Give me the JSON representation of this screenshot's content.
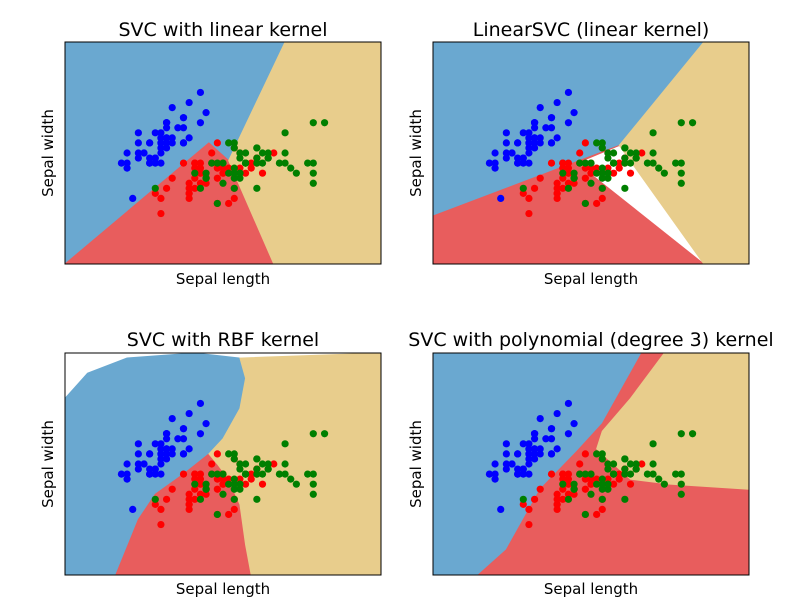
{
  "colors": {
    "blue_region": "#6aa8d0",
    "red_region": "#e85d5d",
    "tan_region": "#e8cd8c",
    "setosa": "#0000ff",
    "versicolor": "#ff0000",
    "virginica": "#007f00"
  },
  "chart_data": [
    {
      "type": "scatter",
      "title": "SVC with linear kernel",
      "xlabel": "Sepal length",
      "ylabel": "Sepal width",
      "ticks": false,
      "xlim": [
        3.3,
        8.9
      ],
      "ylim": [
        1.0,
        5.4
      ],
      "regions": [
        {
          "class": "blue",
          "polygon": [
            [
              3.3,
              1.0
            ],
            [
              3.3,
              5.4
            ],
            [
              7.2,
              5.4
            ],
            [
              6.2,
              3.05
            ],
            [
              5.85,
              3.4
            ],
            [
              3.3,
              1.0
            ]
          ]
        },
        {
          "class": "red",
          "polygon": [
            [
              3.3,
              1.0
            ],
            [
              5.85,
              3.4
            ],
            [
              6.2,
              3.05
            ],
            [
              7.0,
              1.0
            ]
          ]
        },
        {
          "class": "tan",
          "polygon": [
            [
              6.2,
              3.05
            ],
            [
              7.2,
              5.4
            ],
            [
              8.9,
              5.4
            ],
            [
              8.9,
              1.0
            ],
            [
              7.0,
              1.0
            ]
          ]
        }
      ]
    },
    {
      "type": "scatter",
      "title": "LinearSVC (linear kernel)",
      "xlabel": "Sepal length",
      "ylabel": "Sepal width",
      "ticks": false,
      "xlim": [
        3.3,
        8.9
      ],
      "ylim": [
        1.0,
        5.4
      ],
      "regions": [
        {
          "class": "blue",
          "polygon": [
            [
              3.3,
              1.0
            ],
            [
              3.3,
              5.4
            ],
            [
              8.1,
              5.4
            ],
            [
              6.6,
              3.35
            ],
            [
              3.3,
              1.95
            ]
          ]
        },
        {
          "class": "red",
          "polygon": [
            [
              3.3,
              1.0
            ],
            [
              3.3,
              1.95
            ],
            [
              6.6,
              3.35
            ],
            [
              5.85,
              3.0
            ],
            [
              8.1,
              1.0
            ]
          ]
        },
        {
          "class": "tan",
          "polygon": [
            [
              8.1,
              5.4
            ],
            [
              8.9,
              5.4
            ],
            [
              8.9,
              1.0
            ],
            [
              8.1,
              1.0
            ],
            [
              6.6,
              3.35
            ]
          ]
        }
      ]
    },
    {
      "type": "scatter",
      "title": "SVC with RBF kernel",
      "xlabel": "Sepal length",
      "ylabel": "Sepal width",
      "ticks": false,
      "xlim": [
        3.3,
        8.9
      ],
      "ylim": [
        1.0,
        5.4
      ],
      "regions": [
        {
          "class": "blue",
          "polygon": [
            [
              3.3,
              1.0
            ],
            [
              3.3,
              4.5
            ],
            [
              3.7,
              5.0
            ],
            [
              4.4,
              5.3
            ],
            [
              5.6,
              5.4
            ],
            [
              6.4,
              5.3
            ],
            [
              6.5,
              4.9
            ],
            [
              6.4,
              4.3
            ],
            [
              6.1,
              3.7
            ],
            [
              5.85,
              3.4
            ],
            [
              5.4,
              3.0
            ],
            [
              4.9,
              2.6
            ],
            [
              4.6,
              2.1
            ],
            [
              4.2,
              1.0
            ]
          ]
        },
        {
          "class": "red",
          "polygon": [
            [
              4.2,
              1.0
            ],
            [
              4.6,
              2.1
            ],
            [
              4.9,
              2.6
            ],
            [
              5.4,
              3.0
            ],
            [
              5.85,
              3.4
            ],
            [
              6.0,
              3.2
            ],
            [
              6.2,
              2.9
            ],
            [
              6.4,
              2.4
            ],
            [
              6.5,
              1.6
            ],
            [
              6.6,
              1.0
            ]
          ]
        },
        {
          "class": "tan",
          "polygon": [
            [
              6.6,
              1.0
            ],
            [
              6.5,
              1.6
            ],
            [
              6.4,
              2.4
            ],
            [
              6.2,
              2.9
            ],
            [
              6.0,
              3.2
            ],
            [
              5.85,
              3.4
            ],
            [
              6.1,
              3.7
            ],
            [
              6.4,
              4.3
            ],
            [
              6.5,
              4.9
            ],
            [
              6.4,
              5.3
            ],
            [
              8.9,
              5.4
            ],
            [
              8.9,
              1.0
            ]
          ]
        }
      ]
    },
    {
      "type": "scatter",
      "title": "SVC with polynomial (degree 3) kernel",
      "xlabel": "Sepal length",
      "ylabel": "Sepal width",
      "ticks": false,
      "xlim": [
        3.3,
        8.9
      ],
      "ylim": [
        1.0,
        5.4
      ],
      "regions": [
        {
          "class": "blue",
          "polygon": [
            [
              3.3,
              1.0
            ],
            [
              3.3,
              5.4
            ],
            [
              7.0,
              5.4
            ],
            [
              6.3,
              4.0
            ],
            [
              5.85,
              3.45
            ],
            [
              5.2,
              2.7
            ],
            [
              4.6,
              1.5
            ],
            [
              4.1,
              1.0
            ]
          ]
        },
        {
          "class": "red",
          "polygon": [
            [
              4.1,
              1.0
            ],
            [
              4.6,
              1.5
            ],
            [
              5.2,
              2.7
            ],
            [
              5.85,
              3.45
            ],
            [
              6.3,
              4.0
            ],
            [
              7.0,
              5.4
            ],
            [
              7.4,
              5.4
            ],
            [
              6.8,
              4.5
            ],
            [
              6.3,
              3.85
            ],
            [
              6.2,
              3.5
            ],
            [
              6.5,
              3.2
            ],
            [
              6.8,
              2.9
            ],
            [
              7.5,
              2.8
            ],
            [
              8.9,
              2.7
            ],
            [
              8.9,
              1.0
            ]
          ]
        },
        {
          "class": "tan",
          "polygon": [
            [
              7.4,
              5.4
            ],
            [
              8.9,
              5.4
            ],
            [
              8.9,
              2.7
            ],
            [
              7.5,
              2.8
            ],
            [
              6.8,
              2.9
            ],
            [
              6.5,
              3.2
            ],
            [
              6.2,
              3.5
            ],
            [
              6.3,
              3.85
            ],
            [
              6.8,
              4.5
            ]
          ]
        }
      ]
    }
  ],
  "points": {
    "setosa": [
      [
        5.1,
        3.5
      ],
      [
        4.9,
        3.0
      ],
      [
        4.7,
        3.2
      ],
      [
        4.6,
        3.1
      ],
      [
        5.0,
        3.6
      ],
      [
        5.4,
        3.9
      ],
      [
        4.6,
        3.4
      ],
      [
        5.0,
        3.4
      ],
      [
        4.4,
        2.9
      ],
      [
        4.9,
        3.1
      ],
      [
        5.4,
        3.7
      ],
      [
        4.8,
        3.4
      ],
      [
        4.8,
        3.0
      ],
      [
        4.3,
        3.0
      ],
      [
        5.8,
        4.0
      ],
      [
        5.7,
        4.4
      ],
      [
        5.4,
        3.9
      ],
      [
        5.1,
        3.5
      ],
      [
        5.7,
        3.8
      ],
      [
        5.1,
        3.8
      ],
      [
        5.4,
        3.4
      ],
      [
        5.1,
        3.7
      ],
      [
        4.6,
        3.6
      ],
      [
        5.1,
        3.3
      ],
      [
        4.8,
        3.4
      ],
      [
        5.0,
        3.0
      ],
      [
        5.0,
        3.4
      ],
      [
        5.2,
        3.5
      ],
      [
        5.2,
        3.4
      ],
      [
        4.7,
        3.2
      ],
      [
        4.8,
        3.1
      ],
      [
        5.4,
        3.4
      ],
      [
        5.2,
        4.1
      ],
      [
        5.5,
        4.2
      ],
      [
        4.9,
        3.1
      ],
      [
        5.0,
        3.2
      ],
      [
        5.5,
        3.5
      ],
      [
        4.9,
        3.6
      ],
      [
        4.4,
        3.0
      ],
      [
        5.1,
        3.4
      ],
      [
        5.0,
        3.5
      ],
      [
        4.5,
        2.3
      ],
      [
        4.4,
        3.2
      ],
      [
        5.0,
        3.5
      ],
      [
        5.1,
        3.8
      ],
      [
        4.8,
        3.0
      ],
      [
        5.1,
        3.8
      ],
      [
        4.6,
        3.2
      ],
      [
        5.3,
        3.7
      ],
      [
        5.0,
        3.3
      ]
    ],
    "versicolor": [
      [
        7.0,
        3.2
      ],
      [
        6.4,
        3.2
      ],
      [
        6.9,
        3.1
      ],
      [
        5.5,
        2.3
      ],
      [
        6.5,
        2.8
      ],
      [
        5.7,
        2.8
      ],
      [
        6.3,
        3.3
      ],
      [
        4.9,
        2.4
      ],
      [
        6.6,
        2.9
      ],
      [
        5.2,
        2.7
      ],
      [
        5.0,
        2.0
      ],
      [
        5.9,
        3.0
      ],
      [
        6.0,
        2.2
      ],
      [
        6.1,
        2.9
      ],
      [
        5.6,
        2.9
      ],
      [
        6.7,
        3.1
      ],
      [
        5.6,
        3.0
      ],
      [
        5.8,
        2.7
      ],
      [
        6.2,
        2.2
      ],
      [
        5.6,
        2.5
      ],
      [
        5.9,
        3.2
      ],
      [
        6.1,
        2.8
      ],
      [
        6.3,
        2.5
      ],
      [
        6.1,
        2.8
      ],
      [
        6.4,
        2.9
      ],
      [
        6.6,
        3.0
      ],
      [
        6.8,
        2.8
      ],
      [
        6.7,
        3.0
      ],
      [
        6.0,
        2.9
      ],
      [
        5.7,
        2.6
      ],
      [
        5.5,
        2.4
      ],
      [
        5.5,
        2.4
      ],
      [
        5.8,
        2.7
      ],
      [
        6.0,
        2.7
      ],
      [
        5.4,
        3.0
      ],
      [
        6.0,
        3.4
      ],
      [
        6.7,
        3.1
      ],
      [
        6.3,
        2.3
      ],
      [
        5.6,
        3.0
      ],
      [
        5.5,
        2.5
      ],
      [
        5.5,
        2.6
      ],
      [
        6.1,
        3.0
      ],
      [
        5.8,
        2.6
      ],
      [
        5.0,
        2.3
      ],
      [
        5.6,
        2.7
      ],
      [
        5.7,
        3.0
      ],
      [
        5.7,
        2.9
      ],
      [
        6.2,
        2.9
      ],
      [
        5.1,
        2.5
      ],
      [
        5.7,
        2.8
      ]
    ],
    "virginica": [
      [
        6.3,
        3.3
      ],
      [
        5.8,
        2.7
      ],
      [
        7.1,
        3.0
      ],
      [
        6.3,
        2.9
      ],
      [
        6.5,
        3.0
      ],
      [
        7.6,
        3.0
      ],
      [
        4.9,
        2.5
      ],
      [
        7.3,
        2.9
      ],
      [
        6.7,
        2.5
      ],
      [
        7.2,
        3.6
      ],
      [
        6.5,
        3.2
      ],
      [
        6.4,
        2.7
      ],
      [
        6.8,
        3.0
      ],
      [
        5.7,
        2.5
      ],
      [
        5.8,
        2.8
      ],
      [
        6.4,
        3.2
      ],
      [
        6.5,
        3.0
      ],
      [
        7.7,
        3.8
      ],
      [
        7.7,
        2.6
      ],
      [
        6.0,
        2.2
      ],
      [
        6.9,
        3.2
      ],
      [
        5.6,
        2.8
      ],
      [
        7.7,
        2.8
      ],
      [
        6.3,
        2.7
      ],
      [
        6.7,
        3.3
      ],
      [
        7.2,
        3.2
      ],
      [
        6.2,
        2.8
      ],
      [
        6.1,
        3.0
      ],
      [
        6.4,
        2.8
      ],
      [
        7.2,
        3.0
      ],
      [
        7.4,
        2.8
      ],
      [
        7.9,
        3.8
      ],
      [
        6.4,
        2.8
      ],
      [
        6.3,
        2.8
      ],
      [
        6.1,
        2.6
      ],
      [
        7.7,
        3.0
      ],
      [
        6.3,
        3.4
      ],
      [
        6.4,
        3.1
      ],
      [
        6.0,
        3.0
      ],
      [
        6.9,
        3.1
      ],
      [
        6.7,
        3.1
      ],
      [
        6.9,
        3.1
      ],
      [
        5.8,
        2.7
      ],
      [
        6.8,
        3.2
      ],
      [
        6.7,
        3.3
      ],
      [
        6.7,
        3.0
      ],
      [
        6.3,
        2.5
      ],
      [
        6.5,
        3.0
      ],
      [
        6.2,
        3.4
      ],
      [
        5.9,
        3.0
      ]
    ]
  }
}
